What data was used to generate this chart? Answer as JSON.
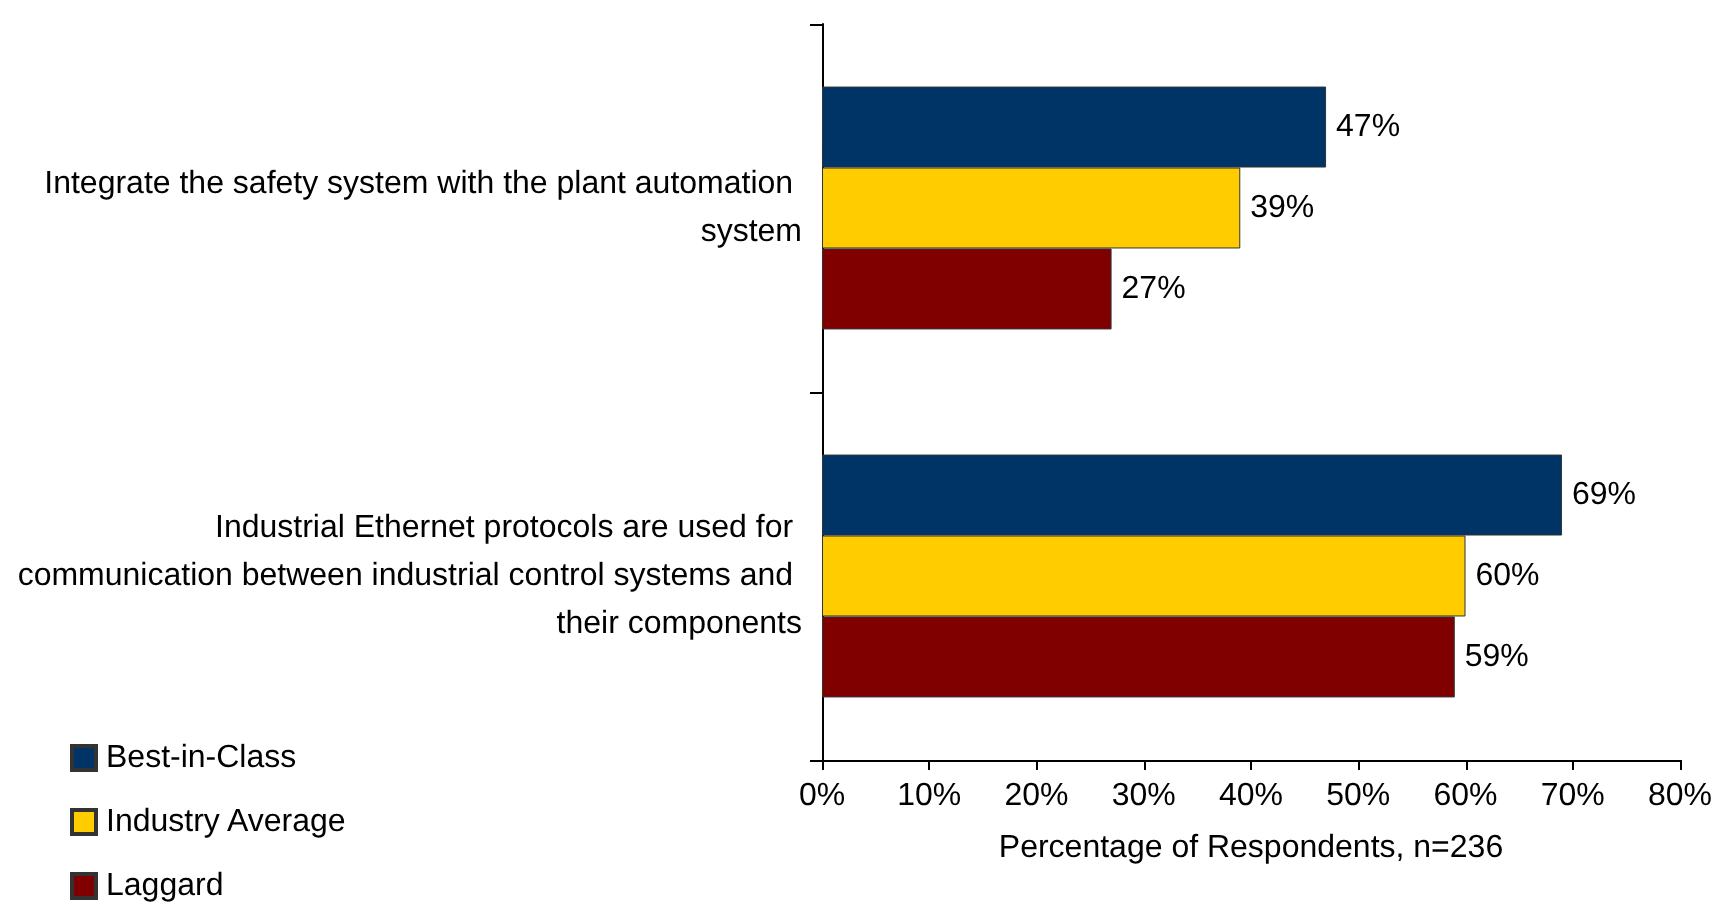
{
  "chart_data": {
    "type": "bar",
    "orientation": "horizontal",
    "categories": [
      "Integrate the safety system with the plant automation system",
      "Industrial Ethernet protocols are used for communication between industrial control systems and their components"
    ],
    "series": [
      {
        "name": "Best-in-Class",
        "color": "#003366",
        "values": [
          47,
          69
        ],
        "value_labels": [
          "47%",
          "69%"
        ]
      },
      {
        "name": "Industry Average",
        "color": "#ffcc00",
        "values": [
          39,
          60
        ],
        "value_labels": [
          "39%",
          "60%"
        ]
      },
      {
        "name": "Laggard",
        "color": "#800000",
        "values": [
          27,
          59
        ],
        "value_labels": [
          "27%",
          "59%"
        ]
      }
    ],
    "xlabel": "Percentage of Respondents, n=236",
    "xlim": [
      0,
      80
    ],
    "xticks": [
      {
        "value": 0,
        "label": "0%"
      },
      {
        "value": 10,
        "label": "10%"
      },
      {
        "value": 20,
        "label": "20%"
      },
      {
        "value": 30,
        "label": "30%"
      },
      {
        "value": 40,
        "label": "40%"
      },
      {
        "value": 50,
        "label": "50%"
      },
      {
        "value": 60,
        "label": "60%"
      },
      {
        "value": 70,
        "label": "70%"
      },
      {
        "value": 80,
        "label": "80%"
      }
    ],
    "grid": false,
    "legend": "bottom left"
  }
}
